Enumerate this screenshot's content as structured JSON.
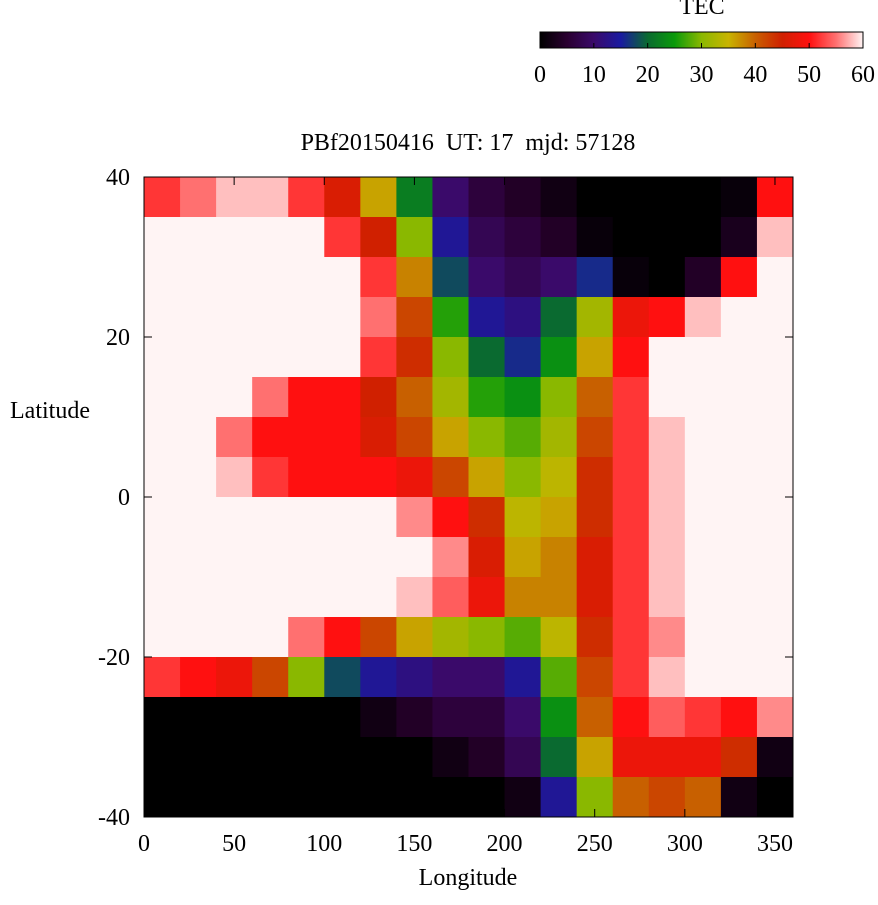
{
  "chart_data": {
    "type": "heatmap",
    "title": "PBf20150416  UT: 17  mjd: 57128",
    "xlabel": "Longitude",
    "ylabel": "Latitude",
    "colorbar_label": "TEC",
    "x": [
      10,
      30,
      50,
      70,
      90,
      110,
      130,
      150,
      170,
      190,
      210,
      230,
      250,
      270,
      290,
      310,
      330,
      350
    ],
    "y": [
      37.5,
      32.5,
      27.5,
      22.5,
      17.5,
      12.5,
      7.5,
      2.5,
      -2.5,
      -7.5,
      -12.5,
      -17.5,
      -22.5,
      -27.5,
      -32.5,
      -37.5
    ],
    "z": [
      [
        52,
        55,
        58,
        58,
        52,
        46,
        36,
        22,
        10,
        6,
        4,
        2,
        0,
        0,
        0,
        0,
        1,
        50
      ],
      [
        60,
        60,
        60,
        60,
        60,
        52,
        45,
        30,
        14,
        8,
        6,
        4,
        1,
        0,
        0,
        0,
        3,
        58
      ],
      [
        60,
        60,
        60,
        60,
        60,
        60,
        52,
        38,
        18,
        10,
        8,
        10,
        16,
        1,
        0,
        4,
        50,
        60
      ],
      [
        60,
        60,
        60,
        60,
        60,
        60,
        55,
        42,
        26,
        14,
        12,
        20,
        32,
        48,
        50,
        58,
        60,
        60
      ],
      [
        60,
        60,
        60,
        60,
        60,
        60,
        52,
        44,
        30,
        20,
        16,
        24,
        36,
        50,
        60,
        60,
        60,
        60
      ],
      [
        60,
        60,
        60,
        55,
        50,
        50,
        45,
        40,
        32,
        26,
        24,
        30,
        40,
        52,
        60,
        60,
        60,
        60
      ],
      [
        60,
        60,
        55,
        50,
        50,
        50,
        46,
        42,
        36,
        30,
        28,
        32,
        42,
        52,
        58,
        60,
        60,
        60
      ],
      [
        60,
        60,
        58,
        52,
        50,
        50,
        50,
        48,
        42,
        36,
        30,
        34,
        44,
        52,
        58,
        60,
        60,
        60
      ],
      [
        60,
        60,
        60,
        60,
        60,
        60,
        60,
        56,
        50,
        44,
        34,
        36,
        44,
        52,
        58,
        60,
        60,
        60
      ],
      [
        60,
        60,
        60,
        60,
        60,
        60,
        60,
        60,
        56,
        46,
        36,
        38,
        46,
        52,
        58,
        60,
        60,
        60
      ],
      [
        60,
        60,
        60,
        60,
        60,
        60,
        60,
        58,
        54,
        48,
        38,
        38,
        46,
        52,
        58,
        60,
        60,
        60
      ],
      [
        60,
        60,
        60,
        60,
        55,
        50,
        42,
        36,
        32,
        30,
        28,
        34,
        44,
        52,
        56,
        60,
        60,
        60
      ],
      [
        52,
        50,
        48,
        42,
        30,
        18,
        14,
        12,
        10,
        10,
        14,
        28,
        42,
        52,
        58,
        60,
        60,
        60
      ],
      [
        0,
        0,
        0,
        0,
        0,
        0,
        2,
        4,
        6,
        6,
        10,
        24,
        40,
        50,
        54,
        52,
        50,
        56
      ],
      [
        0,
        0,
        0,
        0,
        0,
        0,
        0,
        0,
        2,
        4,
        8,
        20,
        36,
        48,
        48,
        48,
        44,
        2
      ],
      [
        0,
        0,
        0,
        0,
        0,
        0,
        0,
        0,
        0,
        0,
        2,
        14,
        30,
        40,
        42,
        40,
        2,
        0
      ]
    ],
    "xlim": [
      0,
      360
    ],
    "ylim": [
      -40,
      40
    ],
    "zlim": [
      0,
      60
    ],
    "xticks": [
      0,
      50,
      100,
      150,
      200,
      250,
      300,
      350
    ],
    "yticks": [
      -40,
      -20,
      0,
      20,
      40
    ],
    "colorbar_ticks": [
      0,
      10,
      20,
      30,
      40,
      50,
      60
    ],
    "colormap": [
      "#000000",
      "#2a0030",
      "#3a0a6a",
      "#1a1aa0",
      "#0a6a30",
      "#0a9a0a",
      "#8ab800",
      "#c8b400",
      "#c86000",
      "#d02000",
      "#ff1010",
      "#ff7070",
      "#fff4f4"
    ]
  }
}
